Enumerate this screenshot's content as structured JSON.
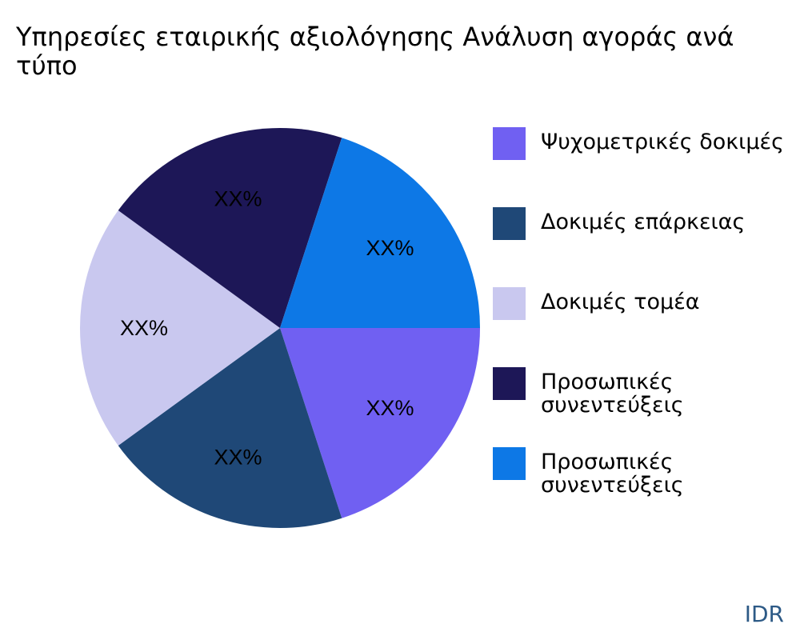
{
  "chart_data": {
    "type": "pie",
    "title": "Υπηρεσίες εταιρικής αξιολόγησης Ανάλυση αγοράς ανά τύπο",
    "slices": [
      {
        "name": "Ψυχομετρικές δοκιμές",
        "value": 20,
        "label": "XX%",
        "color": "#7060f2"
      },
      {
        "name": "Δοκιμές επάρκειας",
        "value": 20,
        "label": "XX%",
        "color": "#1f4877"
      },
      {
        "name": "Δοκιμές τομέα",
        "value": 20,
        "label": "XX%",
        "color": "#c9c8ef"
      },
      {
        "name": "Προσωπικές συνεντεύξεις",
        "value": 20,
        "label": "XX%",
        "color": "#1d1757"
      },
      {
        "name": "Προσωπικές συνεντεύξεις",
        "value": 20,
        "label": "XX%",
        "color": "#0d78e6"
      }
    ],
    "legend_position": "right"
  },
  "brand": "IDR"
}
